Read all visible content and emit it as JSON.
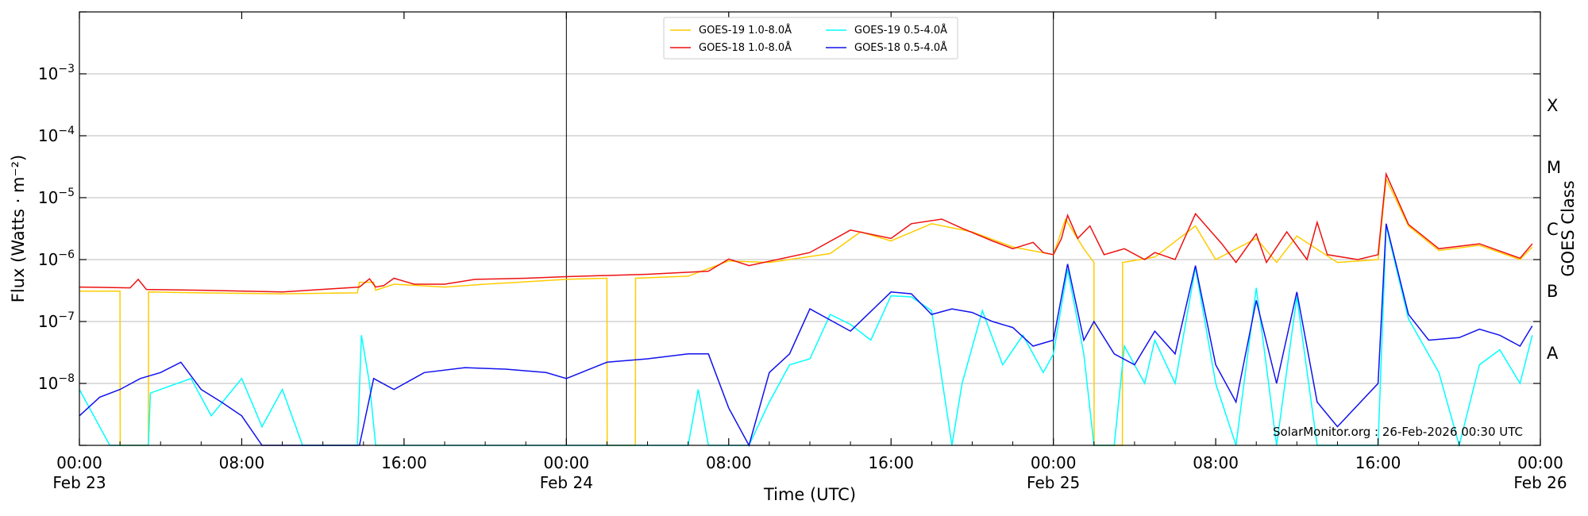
{
  "chart_data": {
    "type": "line",
    "title": "",
    "xlabel": "Time (UTC)",
    "ylabel": "Flux (Watts · m⁻²)",
    "right_label": "GOES Class",
    "y_scale": "log",
    "ylim": [
      1e-09,
      0.01
    ],
    "xlim_hours": [
      0,
      72
    ],
    "grid": "horizontal",
    "legend_placement": "top-center",
    "credit": "SolarMonitor.org : 26-Feb-2026 00:30 UTC",
    "x_ticks": [
      {
        "hour": 0,
        "time": "00:00",
        "date": "Feb 23"
      },
      {
        "hour": 8,
        "time": "08:00",
        "date": ""
      },
      {
        "hour": 16,
        "time": "16:00",
        "date": ""
      },
      {
        "hour": 24,
        "time": "00:00",
        "date": "Feb 24"
      },
      {
        "hour": 32,
        "time": "08:00",
        "date": ""
      },
      {
        "hour": 40,
        "time": "16:00",
        "date": ""
      },
      {
        "hour": 48,
        "time": "00:00",
        "date": "Feb 25"
      },
      {
        "hour": 56,
        "time": "08:00",
        "date": ""
      },
      {
        "hour": 64,
        "time": "16:00",
        "date": ""
      },
      {
        "hour": 72,
        "time": "00:00",
        "date": "Feb 26"
      }
    ],
    "y_ticks": [
      {
        "exp": -8,
        "label": "10",
        "sup": "−8"
      },
      {
        "exp": -7,
        "label": "10",
        "sup": "−7"
      },
      {
        "exp": -6,
        "label": "10",
        "sup": "−6"
      },
      {
        "exp": -5,
        "label": "10",
        "sup": "−5"
      },
      {
        "exp": -4,
        "label": "10",
        "sup": "−4"
      },
      {
        "exp": -3,
        "label": "10",
        "sup": "−3"
      }
    ],
    "goes_classes": [
      {
        "label": "A",
        "exp": -7.5
      },
      {
        "label": "B",
        "exp": -6.5
      },
      {
        "label": "C",
        "exp": -5.5
      },
      {
        "label": "M",
        "exp": -4.5
      },
      {
        "label": "X",
        "exp": -3.5
      }
    ],
    "day_boundaries_hours": [
      24,
      48
    ],
    "series": [
      {
        "name": "GOES-19 1.0-8.0Å",
        "color": "#ffcc00",
        "points": [
          [
            0,
            3.1e-07
          ],
          [
            2,
            3.1e-07
          ],
          [
            2.01,
            1e-09
          ],
          [
            3.4,
            1e-09
          ],
          [
            3.41,
            3e-07
          ],
          [
            6,
            2.9e-07
          ],
          [
            10,
            2.8e-07
          ],
          [
            13.7,
            2.9e-07
          ],
          [
            13.8,
            4.3e-07
          ],
          [
            14.5,
            4.3e-07
          ],
          [
            14.6,
            3.2e-07
          ],
          [
            15.5,
            4e-07
          ],
          [
            18,
            3.6e-07
          ],
          [
            20,
            4e-07
          ],
          [
            24,
            4.8e-07
          ],
          [
            26,
            5e-07
          ],
          [
            26.01,
            1e-09
          ],
          [
            27.4,
            1e-09
          ],
          [
            27.41,
            5e-07
          ],
          [
            30,
            5.4e-07
          ],
          [
            32,
            9.5e-07
          ],
          [
            34,
            9e-07
          ],
          [
            37,
            1.25e-06
          ],
          [
            38.5,
            2.8e-06
          ],
          [
            40,
            2e-06
          ],
          [
            42,
            3.8e-06
          ],
          [
            44,
            2.8e-06
          ],
          [
            46,
            1.6e-06
          ],
          [
            48,
            1.2e-06
          ],
          [
            48.6,
            4.5e-06
          ],
          [
            49.5,
            1.5e-06
          ],
          [
            50,
            9e-07
          ],
          [
            50.01,
            1e-09
          ],
          [
            51.4,
            1e-09
          ],
          [
            51.41,
            9e-07
          ],
          [
            53,
            1.1e-06
          ],
          [
            55,
            3.5e-06
          ],
          [
            56,
            1e-06
          ],
          [
            58,
            2.2e-06
          ],
          [
            59,
            9e-07
          ],
          [
            60,
            2.4e-06
          ],
          [
            62,
            9e-07
          ],
          [
            64,
            1e-06
          ],
          [
            64.4,
            2e-05
          ],
          [
            65.5,
            3.5e-06
          ],
          [
            67,
            1.4e-06
          ],
          [
            69,
            1.7e-06
          ],
          [
            71,
            1e-06
          ],
          [
            71.6,
            1.6e-06
          ]
        ]
      },
      {
        "name": "GOES-18 1.0-8.0Å",
        "color": "#ee1111",
        "points": [
          [
            0,
            3.6e-07
          ],
          [
            2.5,
            3.5e-07
          ],
          [
            2.9,
            4.8e-07
          ],
          [
            3.3,
            3.3e-07
          ],
          [
            6,
            3.2e-07
          ],
          [
            10,
            3e-07
          ],
          [
            13.8,
            3.6e-07
          ],
          [
            14.3,
            4.9e-07
          ],
          [
            14.6,
            3.6e-07
          ],
          [
            15,
            3.8e-07
          ],
          [
            15.5,
            5e-07
          ],
          [
            16.5,
            4e-07
          ],
          [
            18,
            4e-07
          ],
          [
            19.5,
            4.8e-07
          ],
          [
            22,
            5e-07
          ],
          [
            24,
            5.3e-07
          ],
          [
            28,
            5.8e-07
          ],
          [
            31,
            6.5e-07
          ],
          [
            32,
            1.02e-06
          ],
          [
            33,
            8e-07
          ],
          [
            36,
            1.3e-06
          ],
          [
            38,
            3e-06
          ],
          [
            40,
            2.2e-06
          ],
          [
            41,
            3.8e-06
          ],
          [
            42.5,
            4.5e-06
          ],
          [
            43.5,
            3.2e-06
          ],
          [
            45,
            2e-06
          ],
          [
            46,
            1.5e-06
          ],
          [
            47,
            1.9e-06
          ],
          [
            47.5,
            1.3e-06
          ],
          [
            48,
            1.2e-06
          ],
          [
            48.4,
            2.2e-06
          ],
          [
            48.7,
            5.2e-06
          ],
          [
            49.2,
            2.2e-06
          ],
          [
            49.8,
            3.5e-06
          ],
          [
            50.5,
            1.2e-06
          ],
          [
            51.5,
            1.5e-06
          ],
          [
            52.5,
            1e-06
          ],
          [
            53,
            1.3e-06
          ],
          [
            54,
            1e-06
          ],
          [
            55,
            5.5e-06
          ],
          [
            56.3,
            1.8e-06
          ],
          [
            57,
            9e-07
          ],
          [
            58,
            2.6e-06
          ],
          [
            58.5,
            9e-07
          ],
          [
            59.5,
            2.8e-06
          ],
          [
            60.5,
            1e-06
          ],
          [
            61,
            4e-06
          ],
          [
            61.5,
            1.2e-06
          ],
          [
            63,
            1e-06
          ],
          [
            64,
            1.2e-06
          ],
          [
            64.4,
            2.4e-05
          ],
          [
            65.5,
            3.7e-06
          ],
          [
            67,
            1.5e-06
          ],
          [
            69,
            1.8e-06
          ],
          [
            71,
            1.05e-06
          ],
          [
            71.6,
            1.8e-06
          ]
        ]
      },
      {
        "name": "GOES-19 0.5-4.0Å",
        "color": "#00ffff",
        "points": [
          [
            0,
            8e-09
          ],
          [
            1.5,
            1e-09
          ],
          [
            3.4,
            1e-09
          ],
          [
            3.5,
            7e-09
          ],
          [
            5.5,
            1.2e-08
          ],
          [
            6.5,
            3e-09
          ],
          [
            8,
            1.2e-08
          ],
          [
            9,
            2e-09
          ],
          [
            10,
            8e-09
          ],
          [
            11,
            1e-09
          ],
          [
            13.7,
            1e-09
          ],
          [
            13.9,
            6e-08
          ],
          [
            14.3,
            1e-08
          ],
          [
            14.6,
            1e-09
          ],
          [
            30,
            1e-09
          ],
          [
            30.5,
            8e-09
          ],
          [
            31,
            1e-09
          ],
          [
            33,
            1e-09
          ],
          [
            34,
            5e-09
          ],
          [
            35,
            2e-08
          ],
          [
            36,
            2.5e-08
          ],
          [
            37,
            1.3e-07
          ],
          [
            38,
            9e-08
          ],
          [
            39,
            5e-08
          ],
          [
            40,
            2.6e-07
          ],
          [
            41,
            2.5e-07
          ],
          [
            42,
            1.5e-07
          ],
          [
            43,
            1e-09
          ],
          [
            43.5,
            1e-08
          ],
          [
            44.5,
            1.5e-07
          ],
          [
            45.5,
            2e-08
          ],
          [
            46.5,
            6e-08
          ],
          [
            47.5,
            1.5e-08
          ],
          [
            48,
            3e-08
          ],
          [
            48.7,
            7e-07
          ],
          [
            49.5,
            3e-08
          ],
          [
            50,
            1e-09
          ],
          [
            51,
            1e-09
          ],
          [
            51.5,
            4e-08
          ],
          [
            52.5,
            1e-08
          ],
          [
            53,
            5e-08
          ],
          [
            54,
            1e-08
          ],
          [
            55,
            7.5e-07
          ],
          [
            56,
            1e-08
          ],
          [
            57,
            1e-09
          ],
          [
            58,
            3.5e-07
          ],
          [
            59,
            1e-09
          ],
          [
            60,
            2.5e-07
          ],
          [
            61,
            1e-09
          ],
          [
            64,
            1e-09
          ],
          [
            64.4,
            3.5e-06
          ],
          [
            65.5,
            1.1e-07
          ],
          [
            67,
            1.5e-08
          ],
          [
            68,
            1e-09
          ],
          [
            69,
            2e-08
          ],
          [
            70,
            3.5e-08
          ],
          [
            71,
            1e-08
          ],
          [
            71.6,
            6e-08
          ]
        ]
      },
      {
        "name": "GOES-18 0.5-4.0Å",
        "color": "#1111ee",
        "points": [
          [
            0,
            3e-09
          ],
          [
            1,
            6e-09
          ],
          [
            2,
            8e-09
          ],
          [
            3,
            1.2e-08
          ],
          [
            4,
            1.5e-08
          ],
          [
            5,
            2.2e-08
          ],
          [
            6,
            8e-09
          ],
          [
            7,
            5e-09
          ],
          [
            8,
            3e-09
          ],
          [
            9,
            1e-09
          ],
          [
            13.8,
            1e-09
          ],
          [
            14.5,
            1.2e-08
          ],
          [
            15.5,
            8e-09
          ],
          [
            17,
            1.5e-08
          ],
          [
            19,
            1.8e-08
          ],
          [
            21,
            1.7e-08
          ],
          [
            23,
            1.5e-08
          ],
          [
            24,
            1.2e-08
          ],
          [
            26,
            2.2e-08
          ],
          [
            28,
            2.5e-08
          ],
          [
            30,
            3e-08
          ],
          [
            31,
            3e-08
          ],
          [
            32,
            4e-09
          ],
          [
            33,
            1e-09
          ],
          [
            34,
            1.5e-08
          ],
          [
            35,
            3e-08
          ],
          [
            36,
            1.6e-07
          ],
          [
            38,
            7e-08
          ],
          [
            40,
            3e-07
          ],
          [
            41,
            2.8e-07
          ],
          [
            42,
            1.3e-07
          ],
          [
            43,
            1.6e-07
          ],
          [
            44,
            1.4e-07
          ],
          [
            45,
            1e-07
          ],
          [
            46,
            8e-08
          ],
          [
            47,
            4e-08
          ],
          [
            48,
            5e-08
          ],
          [
            48.7,
            8.5e-07
          ],
          [
            49.5,
            5e-08
          ],
          [
            50,
            1e-07
          ],
          [
            51,
            3e-08
          ],
          [
            52,
            2e-08
          ],
          [
            53,
            7e-08
          ],
          [
            54,
            3e-08
          ],
          [
            55,
            8e-07
          ],
          [
            56,
            2e-08
          ],
          [
            57,
            5e-09
          ],
          [
            58,
            2.2e-07
          ],
          [
            59,
            1e-08
          ],
          [
            60,
            3e-07
          ],
          [
            61,
            5e-09
          ],
          [
            62,
            2e-09
          ],
          [
            64,
            1e-08
          ],
          [
            64.4,
            3.8e-06
          ],
          [
            65.5,
            1.3e-07
          ],
          [
            66.5,
            5e-08
          ],
          [
            68,
            5.5e-08
          ],
          [
            69,
            7.5e-08
          ],
          [
            70,
            6e-08
          ],
          [
            71,
            4e-08
          ],
          [
            71.6,
            8.5e-08
          ]
        ]
      }
    ]
  }
}
